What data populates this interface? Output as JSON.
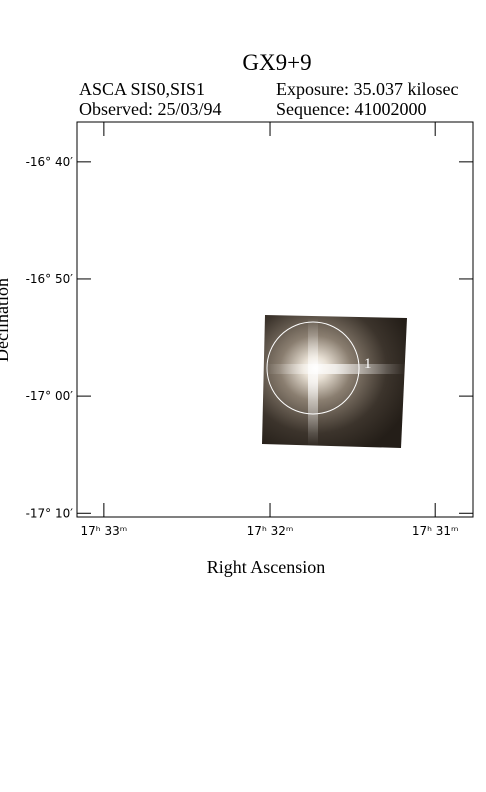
{
  "chart_data": {
    "type": "image",
    "title": "GX9+9",
    "instrument": "ASCA SIS0,SIS1",
    "exposure": "Exposure: 35.037 kilosec",
    "observed": "Observed: 25/03/94",
    "sequence": "Sequence: 41002000",
    "xlabel": "Right Ascension",
    "ylabel": "Declination",
    "region_label": "1",
    "xlim": [
      17.5527,
      17.5129
    ],
    "xticks": [
      {
        "value": 17.55,
        "label": "17ʰ 33ᵐ"
      },
      {
        "value": 17.5333,
        "label": "17ʰ 32ᵐ"
      },
      {
        "value": 17.5167,
        "label": "17ʰ 31ᵐ"
      }
    ],
    "ylim": [
      -17.172,
      -16.61
    ],
    "yticks": [
      {
        "value": -16.6667,
        "label": "-16° 40′"
      },
      {
        "value": -16.8333,
        "label": "-16° 50′"
      },
      {
        "value": -17.0,
        "label": "-17° 00′"
      },
      {
        "value": -17.1667,
        "label": "-17° 10′"
      }
    ]
  }
}
